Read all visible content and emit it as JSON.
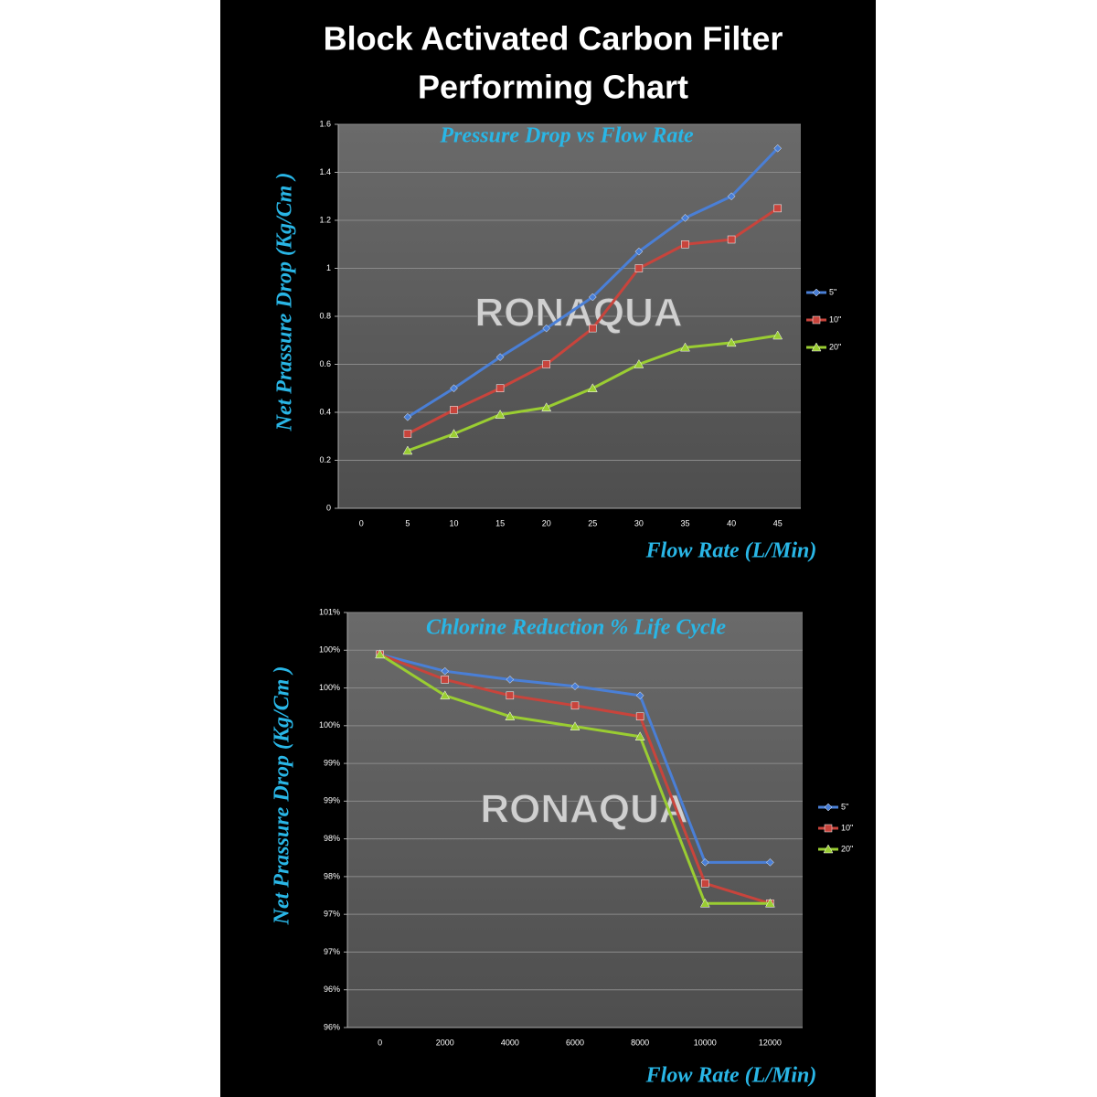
{
  "title": [
    "Block Activated Carbon Filter",
    "Performing Chart"
  ],
  "chart_data": [
    {
      "type": "line",
      "title": "Pressure Drop vs Flow Rate",
      "watermark": "RONAQUA",
      "y_label": "Net Prassure Drop (Kg/Cm )",
      "x_label": "Flow Rate (L/Min)",
      "categories": [
        "0",
        "5",
        "10",
        "15",
        "20",
        "25",
        "30",
        "35",
        "40",
        "45"
      ],
      "series": [
        {
          "name": "5\"",
          "color": "#4a7fd6",
          "marker": "diamond",
          "values": [
            null,
            0.38,
            0.5,
            0.63,
            0.75,
            0.88,
            1.07,
            1.21,
            1.3,
            1.5
          ]
        },
        {
          "name": "10\"",
          "color": "#c8443c",
          "marker": "square",
          "values": [
            null,
            0.31,
            0.41,
            0.5,
            0.6,
            0.75,
            1.0,
            1.1,
            1.12,
            1.25
          ]
        },
        {
          "name": "20\"",
          "color": "#9acd32",
          "marker": "triangle",
          "values": [
            null,
            0.24,
            0.31,
            0.39,
            0.42,
            0.5,
            0.6,
            0.67,
            0.69,
            0.72
          ]
        }
      ],
      "ylim": [
        0,
        1.6
      ],
      "yticks": [
        0,
        0.2,
        0.4,
        0.6,
        0.8,
        1,
        1.2,
        1.4,
        1.6
      ],
      "grid": true,
      "legend": "right"
    },
    {
      "type": "line",
      "title": "Chlorine Reduction % Life Cycle",
      "watermark": "RONAQUA",
      "y_label": "Net Prassure Drop (Kg/Cm )",
      "x_label": "Flow Rate (L/Min)",
      "categories": [
        "0",
        "2000",
        "4000",
        "6000",
        "8000",
        "10000",
        "12000"
      ],
      "series": [
        {
          "name": "5\"",
          "color": "#4a7fd6",
          "marker": "diamond",
          "values": [
            100.43,
            100.23,
            100.13,
            100.05,
            99.94,
            97.95,
            97.95
          ]
        },
        {
          "name": "10\"",
          "color": "#c8443c",
          "marker": "square",
          "values": [
            100.43,
            100.13,
            99.94,
            99.82,
            99.69,
            97.7,
            97.46
          ]
        },
        {
          "name": "20\"",
          "color": "#9acd32",
          "marker": "triangle",
          "values": [
            100.43,
            99.94,
            99.69,
            99.57,
            99.45,
            97.46,
            97.46
          ]
        }
      ],
      "ylim": [
        95.98,
        100.93
      ],
      "yticks": [
        {
          "value": 95.98,
          "label": "96%"
        },
        {
          "value": 96.43,
          "label": "96%"
        },
        {
          "value": 96.88,
          "label": "97%"
        },
        {
          "value": 97.33,
          "label": "97%"
        },
        {
          "value": 97.78,
          "label": "98%"
        },
        {
          "value": 98.23,
          "label": "98%"
        },
        {
          "value": 98.68,
          "label": "99%"
        },
        {
          "value": 99.13,
          "label": "99%"
        },
        {
          "value": 99.58,
          "label": "100%"
        },
        {
          "value": 100.03,
          "label": "100%"
        },
        {
          "value": 100.48,
          "label": "100%"
        },
        {
          "value": 100.93,
          "label": "101%"
        }
      ],
      "grid": true,
      "legend": "right"
    }
  ]
}
